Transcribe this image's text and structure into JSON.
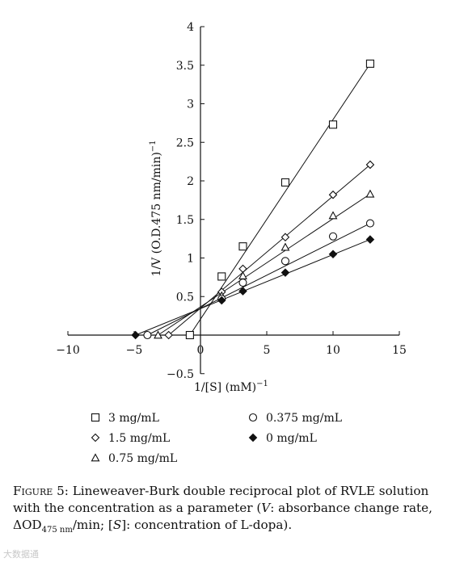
{
  "chart_data": {
    "type": "scatter",
    "xlabel": "1/[S] (mM)",
    "xlabel_exp": "−1",
    "ylabel": "1/V (O.D.475 nm/min)",
    "ylabel_exp": "−1",
    "xlim": [
      -10,
      15
    ],
    "ylim": [
      -0.5,
      4
    ],
    "xticks": [
      -10,
      -5,
      0,
      5,
      10,
      15
    ],
    "xtick_labels": [
      "−10",
      "−5",
      "0",
      "5",
      "10",
      "15"
    ],
    "yticks": [
      -0.5,
      0,
      0.5,
      1,
      1.5,
      2,
      2.5,
      3,
      3.5,
      4
    ],
    "ytick_labels": [
      "−0.5",
      "0",
      "0.5",
      "1",
      "1.5",
      "2",
      "2.5",
      "3",
      "3.5",
      "4"
    ],
    "grid": false,
    "legend_position": "bottom",
    "series": [
      {
        "name": "3 mg/mL",
        "marker": "square-open",
        "x": [
          -0.8,
          1.6,
          3.2,
          6.4,
          10,
          12.8
        ],
        "y": [
          0,
          0.76,
          1.15,
          1.98,
          2.73,
          3.52
        ],
        "fit": {
          "x": [
            -0.8,
            12.8
          ],
          "y": [
            0,
            3.52
          ]
        }
      },
      {
        "name": "1.5 mg/mL",
        "marker": "diamond-open",
        "x": [
          -2.4,
          1.6,
          3.2,
          6.4,
          10,
          12.8
        ],
        "y": [
          0,
          0.56,
          0.86,
          1.27,
          1.82,
          2.21
        ],
        "fit": {
          "x": [
            -2.4,
            12.8
          ],
          "y": [
            0,
            2.21
          ]
        }
      },
      {
        "name": "0.75 mg/mL",
        "marker": "triangle-open",
        "x": [
          -3.2,
          1.6,
          3.2,
          6.4,
          10,
          12.8
        ],
        "y": [
          0,
          0.51,
          0.77,
          1.14,
          1.55,
          1.83
        ],
        "fit": {
          "x": [
            -3.2,
            12.8
          ],
          "y": [
            0,
            1.83
          ]
        }
      },
      {
        "name": "0.375 mg/mL",
        "marker": "circle-open",
        "x": [
          -4.0,
          1.6,
          3.2,
          6.4,
          10,
          12.8
        ],
        "y": [
          0,
          0.47,
          0.68,
          0.96,
          1.28,
          1.45
        ],
        "fit": {
          "x": [
            -4.0,
            12.8
          ],
          "y": [
            0,
            1.45
          ]
        }
      },
      {
        "name": "0 mg/mL",
        "marker": "diamond-filled",
        "x": [
          -4.9,
          1.6,
          3.2,
          6.4,
          10,
          12.8
        ],
        "y": [
          0,
          0.45,
          0.57,
          0.81,
          1.05,
          1.24
        ],
        "fit": {
          "x": [
            -4.9,
            12.8
          ],
          "y": [
            0,
            1.24
          ]
        }
      }
    ]
  },
  "caption": {
    "label": "Figure 5:",
    "text_1": " Lineweaver-Burk double reciprocal plot of RVLE solution with the concentration as a parameter (",
    "v_symbol": "V",
    "text_2": ": absorbance change rate, ΔOD",
    "od_subscript": "475 nm",
    "text_3": "/min; [",
    "s_symbol": "S",
    "text_4": "]: concentration of L-dopa)."
  },
  "watermark": "大数据通"
}
